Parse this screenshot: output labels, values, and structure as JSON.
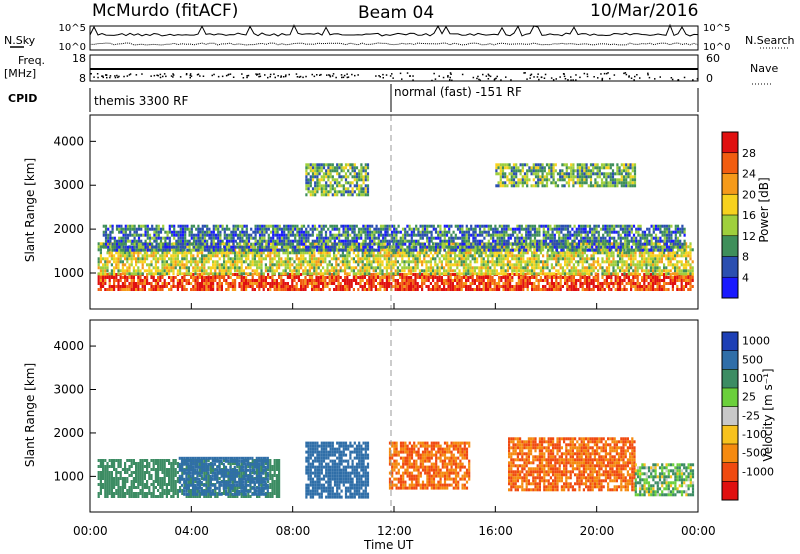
{
  "header": {
    "site": "McMurdo (fitACF)",
    "beam": "Beam 04",
    "date": "10/Mar/2016"
  },
  "top_panels": {
    "left_labels": {
      "nsky": "N.Sky",
      "freq": "Freq.",
      "mhz": "[MHz]",
      "cpid": "CPID"
    },
    "right_labels": {
      "nsearch": "N.Search",
      "nave": "Nave"
    },
    "noise_ticks_left": [
      "10^5",
      "10^0"
    ],
    "noise_ticks_right": [
      "10^5",
      "10^0"
    ],
    "freq_ticks": [
      "18",
      "8"
    ],
    "nave_ticks": [
      "60",
      "0"
    ],
    "cpid_segments": [
      {
        "label": "themis 3300 RF",
        "start_hour": 0
      },
      {
        "label": "normal (fast) -151 RF",
        "start_hour": 12
      }
    ]
  },
  "chart_data": [
    {
      "type": "heatmap",
      "title": "",
      "xlabel": "Time UT",
      "ylabel": "Slant Range [km]",
      "x_range_hours": [
        0,
        24
      ],
      "x_ticks": [
        "00:00",
        "04:00",
        "08:00",
        "12:00",
        "16:00",
        "20:00",
        "00:00"
      ],
      "y_range_km": [
        180,
        4600
      ],
      "y_ticks": [
        1000,
        2000,
        3000,
        4000
      ],
      "colorbar": {
        "label": "Power [dB]",
        "ticks": [
          "4",
          "8",
          "12",
          "16",
          "20",
          "24",
          "28"
        ],
        "colors": [
          "#1a1aff",
          "#2b4fb0",
          "#3f8f5a",
          "#9fcf3c",
          "#f7d21e",
          "#f59a1a",
          "#f25d10",
          "#e01010"
        ]
      },
      "bands": [
        {
          "t0": 0.3,
          "t1": 23.8,
          "r0": 600,
          "r1": 1000,
          "value_level": 7
        },
        {
          "t0": 0.3,
          "t1": 23.8,
          "r0": 1000,
          "r1": 1700,
          "value_level": 4
        },
        {
          "t0": 0.5,
          "t1": 23.5,
          "r0": 1500,
          "r1": 2100,
          "value_level": 2
        },
        {
          "t0": 8.5,
          "t1": 11.0,
          "r0": 2800,
          "r1": 3500,
          "value_level": 3
        },
        {
          "t0": 16.0,
          "t1": 21.5,
          "r0": 3000,
          "r1": 3500,
          "value_level": 3
        }
      ]
    },
    {
      "type": "heatmap",
      "title": "",
      "xlabel": "Time UT",
      "ylabel": "Slant Range [km]",
      "x_range_hours": [
        0,
        24
      ],
      "x_ticks": [
        "00:00",
        "04:00",
        "08:00",
        "12:00",
        "16:00",
        "20:00",
        "00:00"
      ],
      "y_range_km": [
        180,
        4600
      ],
      "y_ticks": [
        1000,
        2000,
        3000,
        4000
      ],
      "colorbar": {
        "label": "Velocity [m s⁻¹]",
        "ticks": [
          "1000",
          "500",
          "100",
          "25",
          "-25",
          "-100",
          "-500",
          "-1000"
        ],
        "colors": [
          "#1d3fb5",
          "#2f6ea8",
          "#3c8c63",
          "#6bd03b",
          "#c8c8c8",
          "#f7c21e",
          "#f58a10",
          "#f04a10",
          "#e01010"
        ]
      },
      "bands": [
        {
          "t0": 0.3,
          "t1": 7.5,
          "r0": 550,
          "r1": 1400,
          "velocity": 200
        },
        {
          "t0": 3.5,
          "t1": 7.0,
          "r0": 600,
          "r1": 1450,
          "velocity": 600
        },
        {
          "t0": 8.5,
          "t1": 11.0,
          "r0": 500,
          "r1": 1800,
          "velocity": 400
        },
        {
          "t0": 11.8,
          "t1": 15.0,
          "r0": 700,
          "r1": 1800,
          "velocity": -300
        },
        {
          "t0": 16.5,
          "t1": 21.5,
          "r0": 700,
          "r1": 1900,
          "velocity": -300
        },
        {
          "t0": 21.5,
          "t1": 23.8,
          "r0": 600,
          "r1": 1300,
          "velocity": 50
        }
      ]
    }
  ]
}
